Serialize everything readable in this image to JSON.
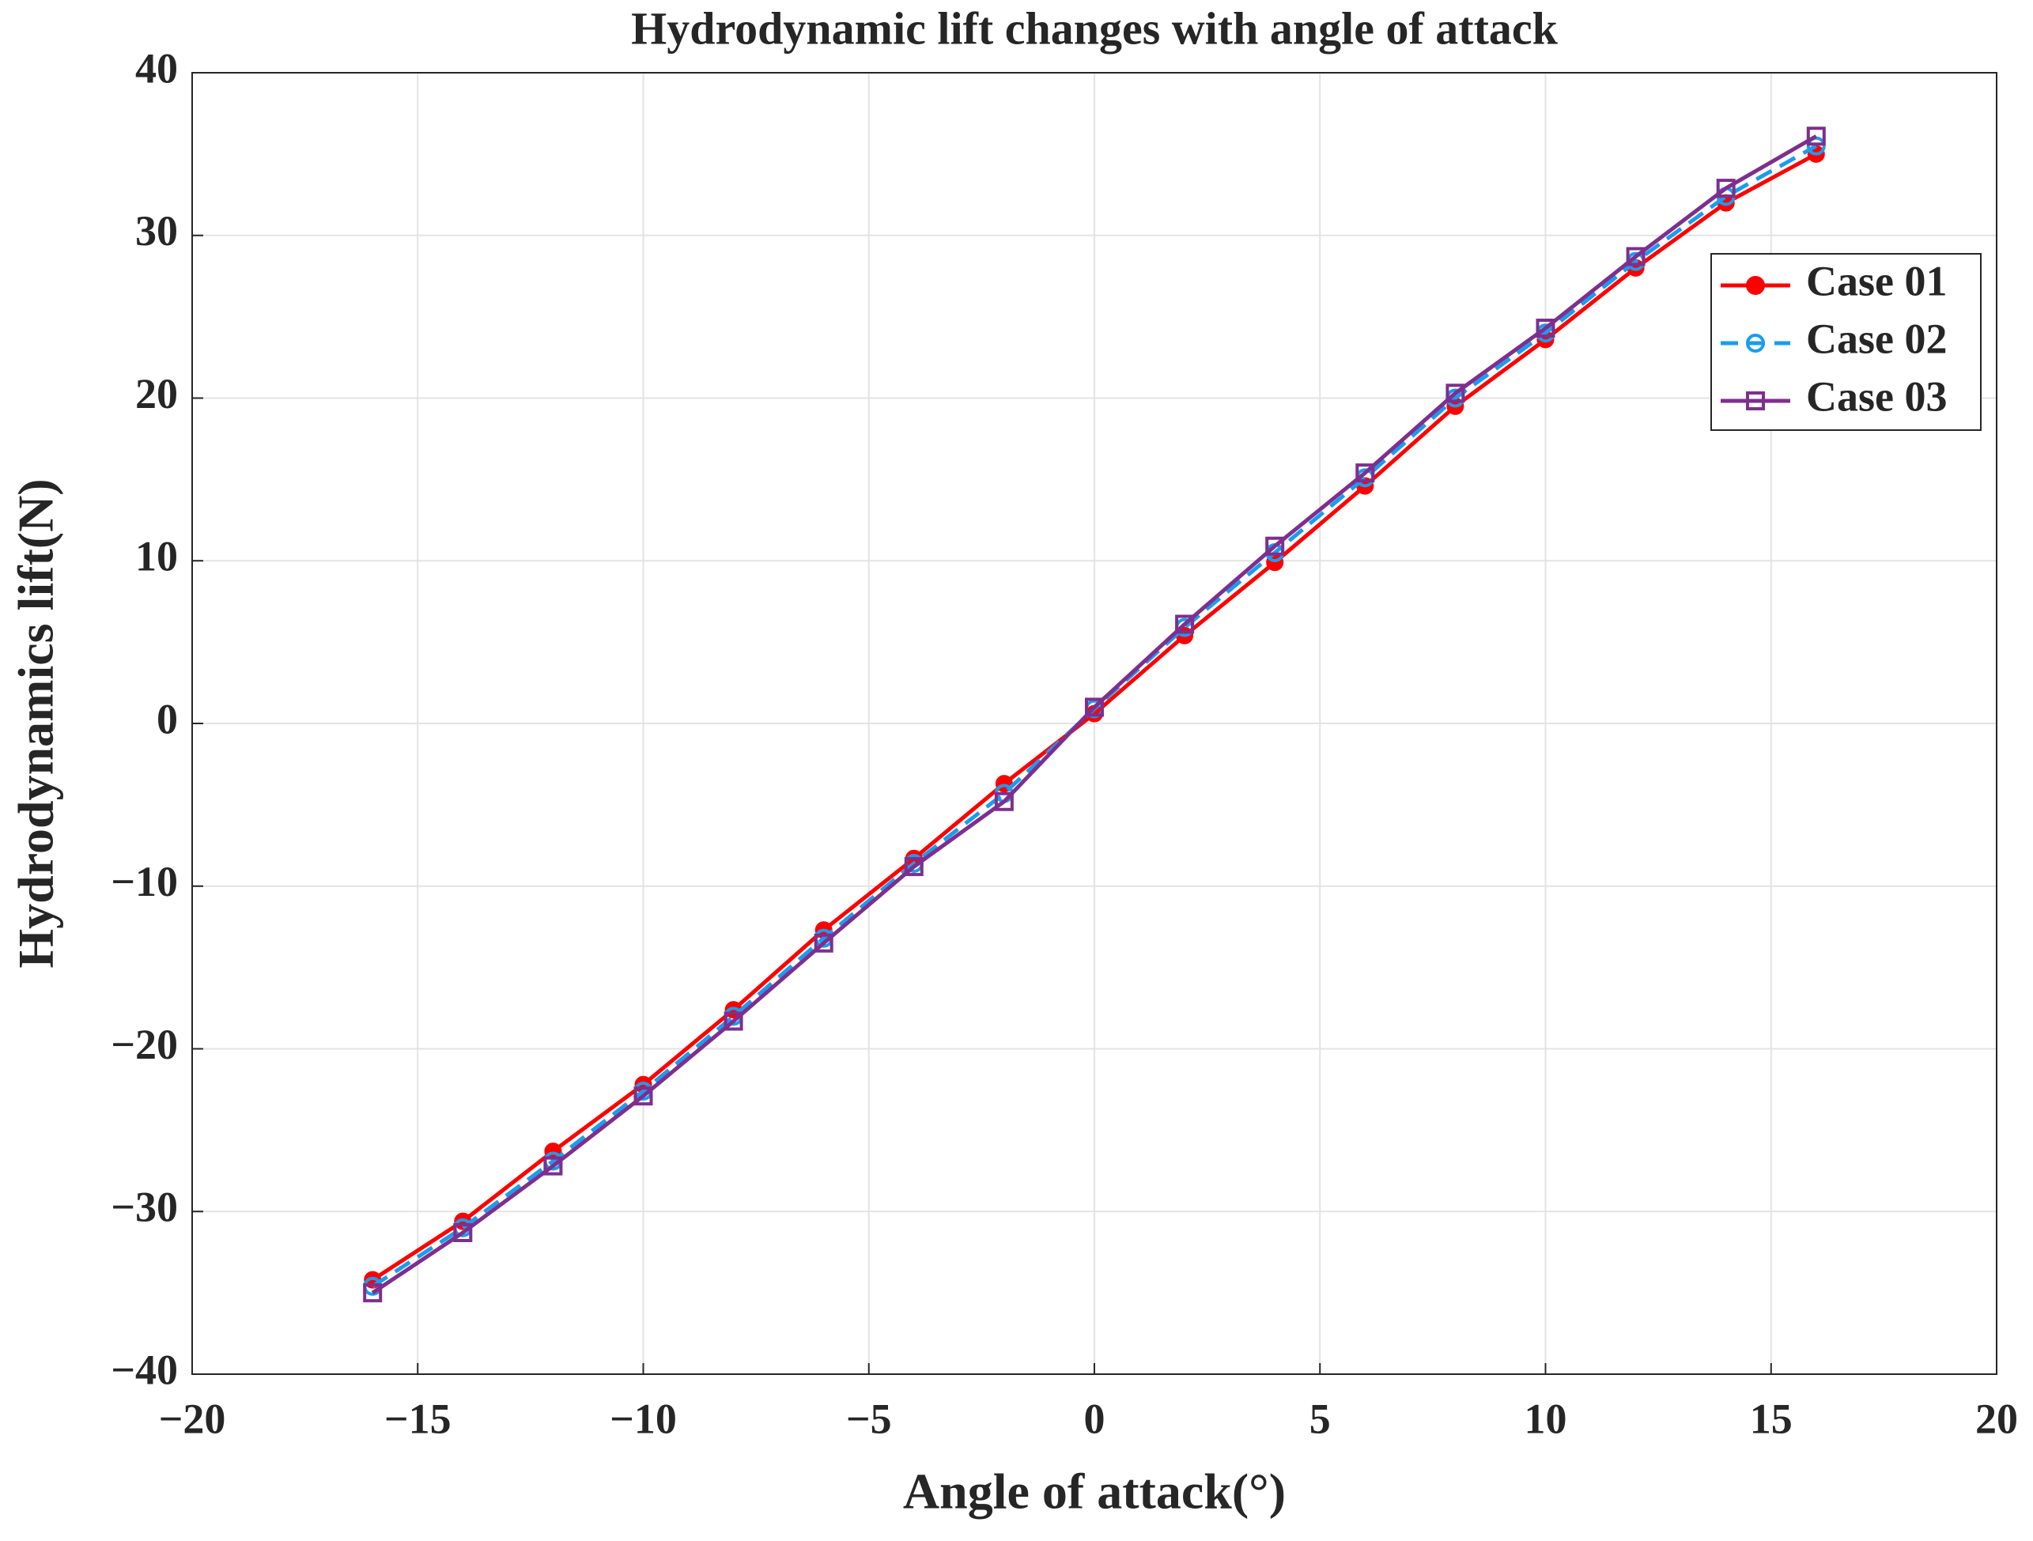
{
  "chart_data": {
    "type": "line",
    "title": "Hydrodynamic lift changes with angle of attack",
    "x_label": "Angle of attack(°)",
    "y_label": "Hydrodynamics lift(N)",
    "x": [
      -16,
      -14,
      -12,
      -10,
      -8,
      -6,
      -4,
      -2,
      0,
      2,
      4,
      6,
      8,
      10,
      12,
      14,
      16
    ],
    "series": [
      {
        "name": "Case 01",
        "color": "#ff0000",
        "linestyle": "solid",
        "marker": "filled-circle",
        "values": [
          -34.2,
          -30.6,
          -26.3,
          -22.2,
          -17.6,
          -12.7,
          -8.3,
          -3.7,
          0.6,
          5.4,
          9.9,
          14.6,
          19.5,
          23.6,
          28.0,
          32.0,
          35.0
        ]
      },
      {
        "name": "Case 02",
        "color": "#1a9cf0",
        "linestyle": "dashed",
        "marker": "circle",
        "values": [
          -34.6,
          -31.0,
          -26.9,
          -22.6,
          -18.0,
          -13.2,
          -8.6,
          -4.3,
          0.9,
          5.9,
          10.5,
          15.1,
          20.0,
          24.0,
          28.4,
          32.4,
          35.5
        ]
      },
      {
        "name": "Case 03",
        "color": "#7e2f8e",
        "linestyle": "solid",
        "marker": "square",
        "values": [
          -35.0,
          -31.3,
          -27.2,
          -22.9,
          -18.3,
          -13.5,
          -8.8,
          -4.8,
          1.0,
          6.1,
          10.9,
          15.4,
          20.3,
          24.3,
          28.7,
          32.9,
          36.1
        ]
      }
    ],
    "xlim": [
      -20,
      20
    ],
    "xticks": [
      {
        "value": -20,
        "label": "−20"
      },
      {
        "value": -15,
        "label": "−15"
      },
      {
        "value": -10,
        "label": "−10"
      },
      {
        "value": -5,
        "label": "−5"
      },
      0,
      5,
      10,
      15,
      20
    ],
    "ylim": [
      -40,
      40
    ],
    "yticks": [
      {
        "value": -40,
        "label": "−40"
      },
      {
        "value": -30,
        "label": "−30"
      },
      {
        "value": -20,
        "label": "−20"
      },
      {
        "value": -10,
        "label": "−10"
      },
      0,
      10,
      20,
      30,
      40
    ],
    "grid": true,
    "legend": "upper right"
  }
}
